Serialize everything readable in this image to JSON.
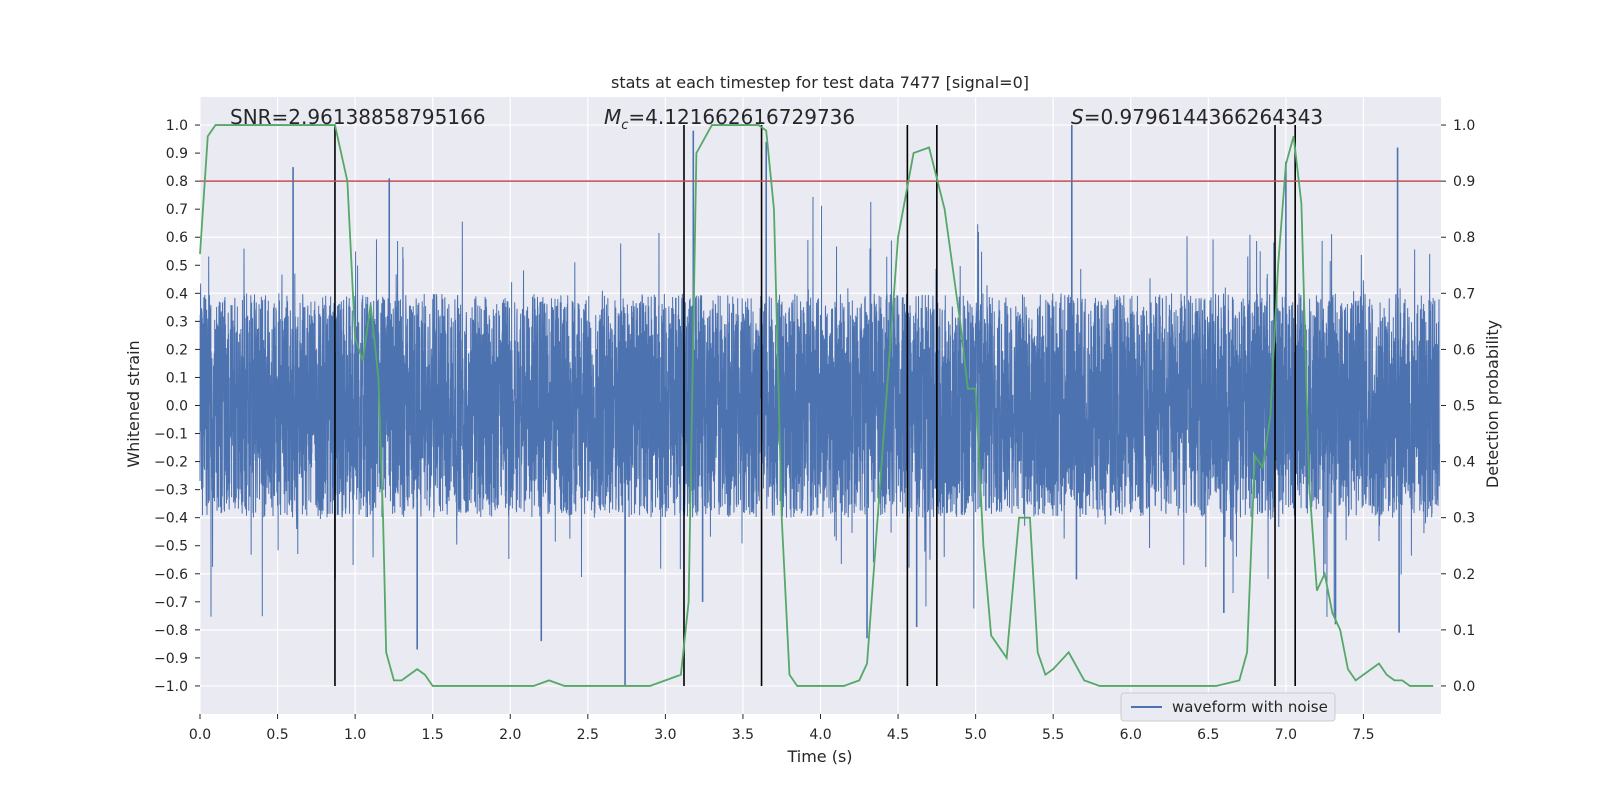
{
  "chart_data": {
    "type": "line",
    "title": "stats at each timestep for test data 7477 [signal=0]",
    "xlabel": "Time (s)",
    "ylabel_left": "Whitened strain",
    "ylabel_right": "Detection probability",
    "xlim": [
      0.0,
      8.0
    ],
    "ylim_left": [
      -1.1,
      1.1
    ],
    "ylim_right": [
      -0.05,
      1.05
    ],
    "x_ticks": [
      "0.0",
      "0.5",
      "1.0",
      "1.5",
      "2.0",
      "2.5",
      "3.0",
      "3.5",
      "4.0",
      "4.5",
      "5.0",
      "5.5",
      "6.0",
      "6.5",
      "7.0",
      "7.5"
    ],
    "y_ticks_left": [
      "1.0",
      "0.9",
      "0.8",
      "0.7",
      "0.6",
      "0.5",
      "0.4",
      "0.3",
      "0.2",
      "0.1",
      "0.0",
      "−0.1",
      "−0.2",
      "−0.3",
      "−0.4",
      "−0.5",
      "−0.6",
      "−0.7",
      "−0.8",
      "−0.9",
      "−1.0"
    ],
    "y_ticks_right": [
      "1.0",
      "0.9",
      "0.8",
      "0.7",
      "0.6",
      "0.5",
      "0.4",
      "0.3",
      "0.2",
      "0.1",
      "0.0"
    ],
    "grid": true,
    "legend_position": "bottom-right",
    "annotations": {
      "snr": "SNR=2.96138858795166",
      "mc_symbol": "M",
      "mc_sub": "c",
      "mc_value": "=4.121662616729736",
      "s_symbol": "S",
      "s_value": "=0.9796144366264343"
    },
    "threshold_line": {
      "y": 0.8,
      "color": "#c44e52"
    },
    "vertical_markers": [
      0.87,
      3.12,
      3.62,
      4.56,
      4.75,
      6.93,
      7.06
    ],
    "series": [
      {
        "name": "waveform with noise",
        "axis": "left",
        "color": "#4c72b0",
        "typical_amplitude": 0.4,
        "peaks": [
          [
            0.6,
            0.85
          ],
          [
            0.87,
            -0.62
          ],
          [
            1.22,
            0.81
          ],
          [
            1.4,
            -0.87
          ],
          [
            2.2,
            -0.84
          ],
          [
            2.74,
            -1.0
          ],
          [
            3.18,
            0.98
          ],
          [
            3.24,
            -0.7
          ],
          [
            3.65,
            0.94
          ],
          [
            4.3,
            -0.83
          ],
          [
            4.62,
            -0.79
          ],
          [
            5.62,
            1.0
          ],
          [
            5.65,
            -0.62
          ],
          [
            6.6,
            -0.74
          ],
          [
            7.0,
            0.87
          ],
          [
            7.32,
            -0.78
          ],
          [
            7.72,
            0.92
          ],
          [
            7.73,
            -0.81
          ]
        ]
      },
      {
        "name": "",
        "axis": "right",
        "color": "#55a868",
        "x": [
          0.0,
          0.05,
          0.1,
          0.2,
          0.3,
          0.5,
          0.7,
          0.87,
          0.95,
          1.0,
          1.05,
          1.1,
          1.15,
          1.18,
          1.2,
          1.25,
          1.3,
          1.35,
          1.4,
          1.45,
          1.5,
          1.55,
          1.65,
          1.85,
          2.0,
          2.15,
          2.25,
          2.35,
          2.5,
          2.6,
          2.75,
          2.9,
          3.0,
          3.1,
          3.15,
          3.2,
          3.3,
          3.5,
          3.6,
          3.65,
          3.7,
          3.75,
          3.8,
          3.85,
          4.0,
          4.15,
          4.25,
          4.3,
          4.4,
          4.5,
          4.6,
          4.7,
          4.8,
          4.9,
          4.95,
          5.0,
          5.05,
          5.1,
          5.2,
          5.28,
          5.35,
          5.4,
          5.45,
          5.5,
          5.6,
          5.7,
          5.8,
          6.0,
          6.3,
          6.55,
          6.7,
          6.75,
          6.8,
          6.85,
          6.9,
          6.95,
          7.0,
          7.05,
          7.1,
          7.15,
          7.2,
          7.25,
          7.3,
          7.35,
          7.4,
          7.45,
          7.5,
          7.6,
          7.65,
          7.7,
          7.75,
          7.8,
          7.85,
          7.95
        ],
        "y": [
          0.77,
          0.98,
          1.0,
          1.0,
          1.0,
          1.0,
          1.0,
          1.0,
          0.9,
          0.62,
          0.58,
          0.68,
          0.55,
          0.3,
          0.06,
          0.01,
          0.01,
          0.02,
          0.03,
          0.02,
          0.0,
          0.0,
          0.0,
          0.0,
          0.0,
          0.0,
          0.01,
          0.0,
          0.0,
          0.0,
          0.0,
          0.0,
          0.01,
          0.02,
          0.15,
          0.95,
          1.0,
          1.0,
          1.0,
          0.99,
          0.85,
          0.3,
          0.02,
          0.0,
          0.0,
          0.0,
          0.01,
          0.04,
          0.42,
          0.8,
          0.95,
          0.96,
          0.85,
          0.65,
          0.53,
          0.53,
          0.25,
          0.09,
          0.05,
          0.3,
          0.3,
          0.06,
          0.02,
          0.03,
          0.06,
          0.01,
          0.0,
          0.0,
          0.0,
          0.0,
          0.01,
          0.06,
          0.41,
          0.39,
          0.48,
          0.75,
          0.93,
          0.98,
          0.86,
          0.36,
          0.17,
          0.2,
          0.13,
          0.1,
          0.03,
          0.01,
          0.02,
          0.04,
          0.02,
          0.01,
          0.01,
          0.0,
          0.0,
          0.0
        ]
      }
    ]
  }
}
